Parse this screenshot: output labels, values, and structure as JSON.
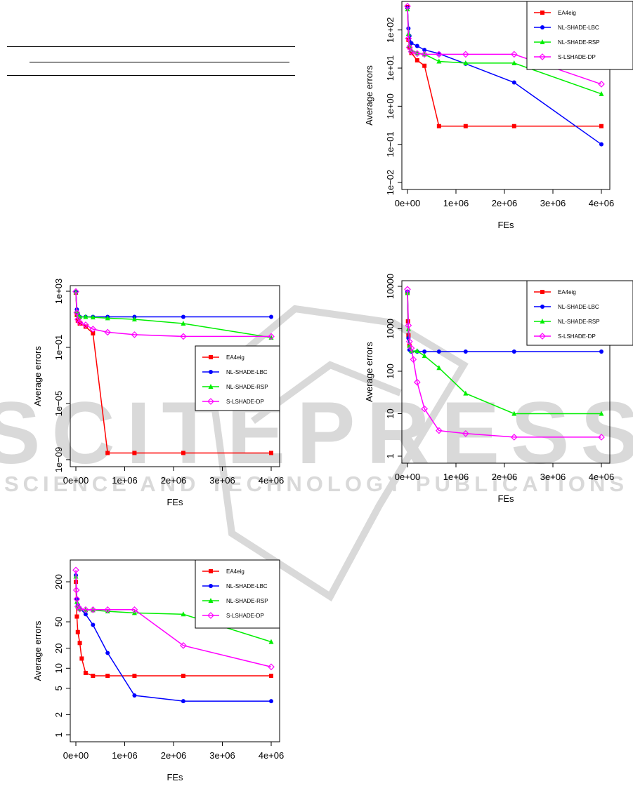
{
  "watermark": {
    "line1": "SCITEPRESS",
    "line2": "SCIENCE AND TECHNOLOGY PUBLICATIONS",
    "color": "#d9d9d9"
  },
  "colors": {
    "EA4eig": "#ff0000",
    "NL-SHADE-LBC": "#0000ff",
    "NL-SHADE-RSP": "#00ee00",
    "S-LSHADE-DP": "#ff00ff"
  },
  "chart_data": [
    {
      "id": "plot-top-right",
      "type": "line",
      "xlabel": "FEs",
      "ylabel": "Average errors",
      "xlim": [
        0,
        4000000
      ],
      "ylim": [
        0.01,
        400
      ],
      "log_y": true,
      "x_ticks": [
        {
          "v": 0,
          "label": "0e+00"
        },
        {
          "v": 1000000,
          "label": "1e+06"
        },
        {
          "v": 2000000,
          "label": "2e+06"
        },
        {
          "v": 3000000,
          "label": "3e+06"
        },
        {
          "v": 4000000,
          "label": "4e+06"
        }
      ],
      "y_ticks": [
        {
          "v": 0.01,
          "label": "1e−02"
        },
        {
          "v": 0.1,
          "label": "1e−01"
        },
        {
          "v": 1,
          "label": "1e+00"
        },
        {
          "v": 10,
          "label": "1e+01"
        },
        {
          "v": 100,
          "label": "1e+02"
        }
      ],
      "legend": {
        "placement": "top-right"
      },
      "series": [
        {
          "name": "EA4eig",
          "marker": "square",
          "x": [
            0,
            20000,
            40000,
            80000,
            200000,
            350000,
            650000,
            1200000,
            2200000,
            4000000
          ],
          "values": [
            400,
            55,
            35,
            25,
            16,
            11.5,
            0.3,
            0.3,
            0.3,
            0.3
          ]
        },
        {
          "name": "NL-SHADE-LBC",
          "marker": "circle",
          "x": [
            0,
            20000,
            40000,
            80000,
            200000,
            350000,
            650000,
            1200000,
            2200000,
            4000000
          ],
          "values": [
            380,
            110,
            70,
            45,
            38,
            30,
            24,
            13,
            4.2,
            0.1
          ]
        },
        {
          "name": "NL-SHADE-RSP",
          "marker": "triangle",
          "x": [
            0,
            20000,
            40000,
            80000,
            200000,
            350000,
            650000,
            1200000,
            2200000,
            4000000
          ],
          "values": [
            350,
            80,
            40,
            30,
            25,
            23,
            15,
            13.5,
            13.5,
            2.1
          ]
        },
        {
          "name": "S-LSHADE-DP",
          "marker": "diamond",
          "x": [
            0,
            20000,
            40000,
            80000,
            200000,
            350000,
            650000,
            1200000,
            2200000,
            4000000
          ],
          "values": [
            420,
            60,
            35,
            27,
            24,
            23,
            23,
            23,
            23,
            3.8
          ]
        }
      ]
    },
    {
      "id": "plot-mid-left",
      "type": "line",
      "xlabel": "FEs",
      "ylabel": "Average errors",
      "xlim": [
        0,
        4000000
      ],
      "ylim": [
        1e-09,
        1000
      ],
      "log_y": true,
      "x_ticks": [
        {
          "v": 0,
          "label": "0e+00"
        },
        {
          "v": 1000000,
          "label": "1e+06"
        },
        {
          "v": 2000000,
          "label": "2e+06"
        },
        {
          "v": 3000000,
          "label": "3e+06"
        },
        {
          "v": 4000000,
          "label": "4e+06"
        }
      ],
      "y_ticks": [
        {
          "v": 1e-09,
          "label": "1e−09"
        },
        {
          "v": 1e-05,
          "label": "1e−05"
        },
        {
          "v": 0.1,
          "label": "1e−01"
        },
        {
          "v": 1000,
          "label": "1e+03"
        }
      ],
      "legend": {
        "placement": "center-right"
      },
      "series": [
        {
          "name": "EA4eig",
          "marker": "square",
          "x": [
            0,
            20000,
            40000,
            80000,
            200000,
            350000,
            650000,
            1200000,
            2200000,
            4000000
          ],
          "values": [
            800,
            20,
            8,
            5,
            3,
            1,
            3e-09,
            3e-09,
            3e-09,
            3e-09
          ]
        },
        {
          "name": "NL-SHADE-LBC",
          "marker": "circle",
          "x": [
            0,
            20000,
            40000,
            80000,
            200000,
            350000,
            650000,
            1200000,
            2200000,
            4000000
          ],
          "values": [
            900,
            50,
            25,
            15,
            15,
            15,
            15,
            15,
            15,
            15
          ]
        },
        {
          "name": "NL-SHADE-RSP",
          "marker": "triangle",
          "x": [
            0,
            20000,
            40000,
            80000,
            200000,
            350000,
            650000,
            1200000,
            2200000,
            4000000
          ],
          "values": [
            850,
            40,
            20,
            15,
            15,
            14,
            12,
            10,
            5,
            0.5
          ]
        },
        {
          "name": "S-LSHADE-DP",
          "marker": "diamond",
          "x": [
            0,
            20000,
            40000,
            80000,
            200000,
            350000,
            650000,
            1200000,
            2200000,
            4000000
          ],
          "values": [
            950,
            30,
            10,
            6,
            4,
            2,
            1.2,
            0.8,
            0.6,
            0.6
          ]
        }
      ]
    },
    {
      "id": "plot-mid-right",
      "type": "line",
      "xlabel": "FEs",
      "ylabel": "Average errors",
      "xlim": [
        0,
        4000000
      ],
      "ylim": [
        1,
        10000
      ],
      "log_y": true,
      "x_ticks": [
        {
          "v": 0,
          "label": "0e+00"
        },
        {
          "v": 1000000,
          "label": "1e+06"
        },
        {
          "v": 2000000,
          "label": "2e+06"
        },
        {
          "v": 3000000,
          "label": "3e+06"
        },
        {
          "v": 4000000,
          "label": "4e+06"
        }
      ],
      "y_ticks": [
        {
          "v": 1,
          "label": "1"
        },
        {
          "v": 10,
          "label": "10"
        },
        {
          "v": 100,
          "label": "100"
        },
        {
          "v": 1000,
          "label": "1000"
        },
        {
          "v": 10000,
          "label": "10000"
        }
      ],
      "legend": {
        "placement": "top-right"
      },
      "series": [
        {
          "name": "EA4eig",
          "marker": "square",
          "x": [
            0,
            10000,
            20000,
            40000
          ],
          "values": [
            7000,
            1500,
            700,
            400
          ]
        },
        {
          "name": "NL-SHADE-LBC",
          "marker": "circle",
          "x": [
            0,
            20000,
            40000,
            80000,
            200000,
            350000,
            650000,
            1200000,
            2200000,
            4000000
          ],
          "values": [
            7500,
            600,
            320,
            290,
            290,
            290,
            290,
            290,
            290,
            290
          ]
        },
        {
          "name": "NL-SHADE-RSP",
          "marker": "triangle",
          "x": [
            0,
            20000,
            40000,
            80000,
            200000,
            350000,
            650000,
            1200000,
            2200000,
            4000000
          ],
          "values": [
            7000,
            1000,
            400,
            300,
            300,
            230,
            120,
            30,
            10,
            10
          ]
        },
        {
          "name": "S-LSHADE-DP",
          "marker": "diamond",
          "x": [
            0,
            20000,
            40000,
            80000,
            120000,
            200000,
            350000,
            650000,
            1200000,
            2200000,
            4000000
          ],
          "values": [
            8500,
            1200,
            500,
            350,
            190,
            55,
            13,
            4,
            3.4,
            2.8,
            2.8
          ]
        }
      ]
    },
    {
      "id": "plot-bottom-left",
      "type": "line",
      "xlabel": "FEs",
      "ylabel": "Average errors",
      "xlim": [
        0,
        4000000
      ],
      "ylim": [
        1,
        350
      ],
      "log_y": true,
      "x_ticks": [
        {
          "v": 0,
          "label": "0e+00"
        },
        {
          "v": 1000000,
          "label": "1e+06"
        },
        {
          "v": 2000000,
          "label": "2e+06"
        },
        {
          "v": 3000000,
          "label": "3e+06"
        },
        {
          "v": 4000000,
          "label": "4e+06"
        }
      ],
      "y_ticks": [
        {
          "v": 1,
          "label": "1"
        },
        {
          "v": 2,
          "label": "2"
        },
        {
          "v": 5,
          "label": "5"
        },
        {
          "v": 10,
          "label": "10"
        },
        {
          "v": 20,
          "label": "20"
        },
        {
          "v": 50,
          "label": "50"
        },
        {
          "v": 200,
          "label": "200"
        }
      ],
      "legend": {
        "placement": "top-right"
      },
      "series": [
        {
          "name": "EA4eig",
          "marker": "square",
          "x": [
            0,
            20000,
            40000,
            80000,
            120000,
            200000,
            350000,
            650000,
            1200000,
            2200000,
            4000000
          ],
          "values": [
            200,
            60,
            35,
            24,
            14,
            8.5,
            7.7,
            7.7,
            7.7,
            7.7,
            7.7
          ]
        },
        {
          "name": "NL-SHADE-LBC",
          "marker": "circle",
          "x": [
            0,
            20000,
            40000,
            80000,
            200000,
            350000,
            650000,
            1200000,
            2200000,
            4000000
          ],
          "values": [
            250,
            110,
            90,
            80,
            65,
            45,
            17,
            3.9,
            3.2,
            3.2
          ]
        },
        {
          "name": "NL-SHADE-RSP",
          "marker": "triangle",
          "x": [
            0,
            20000,
            40000,
            80000,
            200000,
            350000,
            650000,
            1200000,
            2200000,
            4000000
          ],
          "values": [
            240,
            100,
            85,
            78,
            75,
            75,
            72,
            68,
            65,
            25
          ]
        },
        {
          "name": "S-LSHADE-DP",
          "marker": "diamond",
          "x": [
            0,
            10000,
            20000,
            40000,
            80000,
            200000,
            350000,
            650000,
            1200000,
            2200000,
            4000000
          ],
          "values": [
            300,
            150,
            110,
            85,
            78,
            76,
            76,
            76,
            76,
            22,
            10.5
          ]
        }
      ]
    }
  ]
}
